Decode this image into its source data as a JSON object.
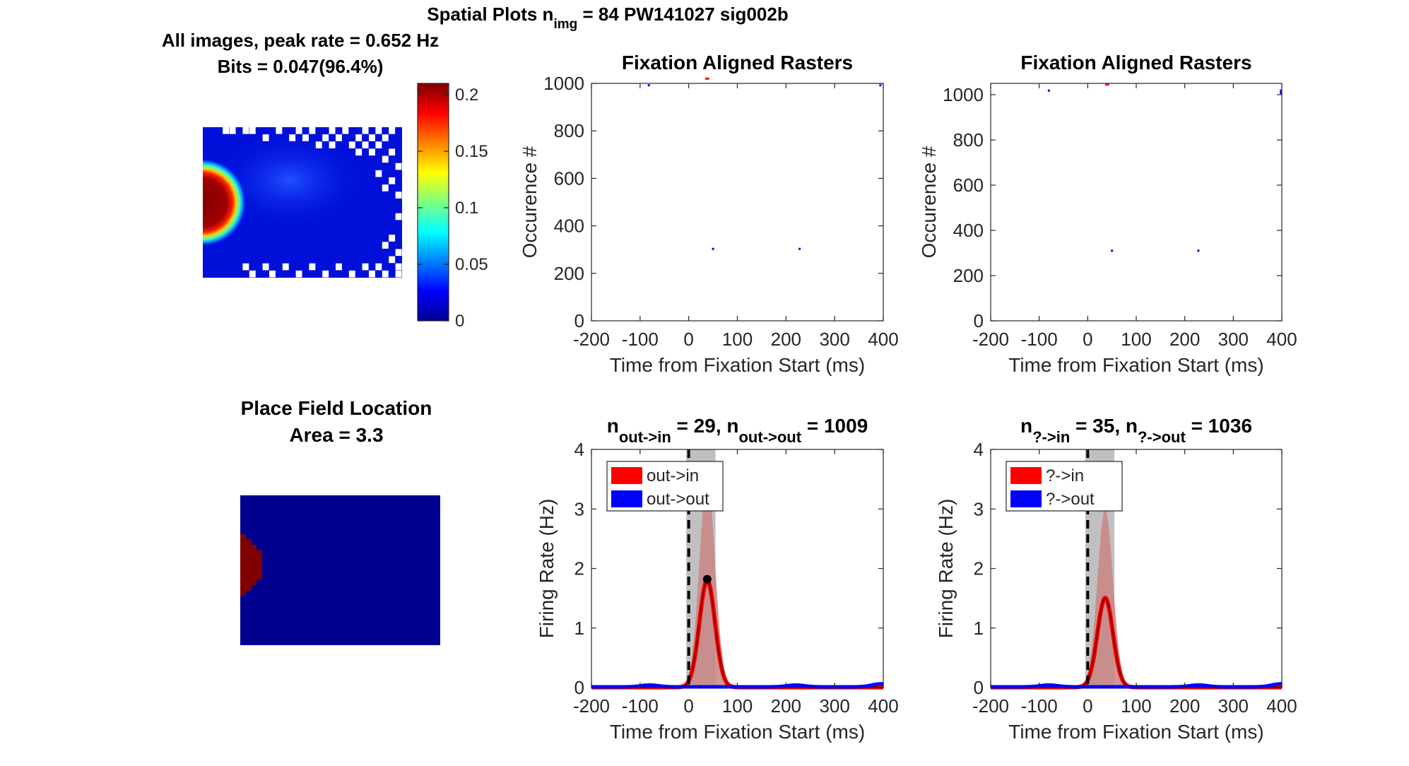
{
  "figure": {
    "title_prefix": "Spatial Plots n",
    "title_sub": "img",
    "title_suffix": " = 84  PW141027 sig002b"
  },
  "colors": {
    "in": "#ff0000",
    "out": "#0000ff",
    "shade_in": "#c98585",
    "window": "#c0c0c0",
    "heatmap_bg": "#00008f",
    "place_field": "#800000"
  },
  "chart_data": [
    {
      "id": "heatmap",
      "type": "heatmap",
      "title_line1": "All images, peak rate = 0.652 Hz",
      "title_line2": "Bits = 0.047(96.4%)",
      "colorbar": {
        "range": [
          0,
          0.21
        ],
        "ticks": [
          0,
          0.05,
          0.1,
          0.15,
          0.2
        ]
      }
    },
    {
      "id": "raster-left",
      "type": "scatter",
      "title": "Fixation Aligned Rasters",
      "xlabel": "Time from Fixation Start (ms)",
      "ylabel": "Occurence #",
      "xlim": [
        -200,
        400
      ],
      "ylim": [
        0,
        1000
      ],
      "xticks": [
        -200,
        -100,
        0,
        100,
        200,
        300,
        400
      ],
      "yticks": [
        0,
        200,
        400,
        600,
        800,
        1000
      ],
      "spikes_out": [
        [
          -82,
          992
        ],
        [
          50,
          303
        ],
        [
          228,
          303
        ],
        [
          394,
          992
        ]
      ],
      "spikes_in": [
        {
          "x0": 34,
          "x1": 42,
          "y": 1020
        }
      ]
    },
    {
      "id": "raster-right",
      "type": "scatter",
      "title": "Fixation Aligned Rasters",
      "xlabel": "Time from Fixation Start (ms)",
      "ylabel": "Occurence #",
      "xlim": [
        -200,
        400
      ],
      "ylim": [
        0,
        1050
      ],
      "xticks": [
        -200,
        -100,
        0,
        100,
        200,
        300,
        400
      ],
      "yticks": [
        0,
        200,
        400,
        600,
        800,
        1000
      ],
      "spikes_out": [
        [
          -80,
          1018
        ],
        [
          50,
          310
        ],
        [
          228,
          310
        ],
        [
          398,
          1018
        ],
        [
          398,
          1008
        ]
      ],
      "spikes_in": [
        {
          "x0": 36,
          "x1": 44,
          "y": 1045
        }
      ]
    },
    {
      "id": "place-field",
      "type": "heatmap",
      "title_line1": "Place Field Location",
      "title_line2": "Area = 3.3"
    },
    {
      "id": "rate-left",
      "type": "line",
      "title_n1": "n",
      "title_sub1": "out->in",
      "title_mid": " = 29, n",
      "title_sub2": "out->out",
      "title_end": " = 1009",
      "xlabel": "Time from Fixation Start (ms)",
      "ylabel": "Firing Rate (Hz)",
      "xlim": [
        -200,
        400
      ],
      "ylim": [
        0,
        4
      ],
      "xticks": [
        -200,
        -100,
        0,
        100,
        200,
        300,
        400
      ],
      "yticks": [
        0,
        1,
        2,
        3,
        4
      ],
      "window": [
        -5,
        55
      ],
      "legend": [
        "out->in",
        "out->out"
      ],
      "in_peak": {
        "x": 38,
        "y": 1.8,
        "sigma": 16,
        "shade_hi": 3.5,
        "shade_lo": 0.0
      },
      "peak_marker": [
        38,
        1.82
      ],
      "out_bumps": [
        [
          -80,
          0.03
        ],
        [
          220,
          0.03
        ],
        [
          395,
          0.05
        ]
      ]
    },
    {
      "id": "rate-right",
      "type": "line",
      "title_n1": "n",
      "title_sub1": "?->in",
      "title_mid": " = 35, n",
      "title_sub2": "?->out",
      "title_end": " = 1036",
      "xlabel": "Time from Fixation Start (ms)",
      "ylabel": "Firing Rate (Hz)",
      "xlim": [
        -200,
        400
      ],
      "ylim": [
        0,
        4
      ],
      "xticks": [
        -200,
        -100,
        0,
        100,
        200,
        300,
        400
      ],
      "yticks": [
        0,
        1,
        2,
        3,
        4
      ],
      "window": [
        -5,
        55
      ],
      "legend": [
        "?->in",
        "?->out"
      ],
      "in_peak": {
        "x": 36,
        "y": 1.5,
        "sigma": 16,
        "shade_hi": 3.0,
        "shade_lo": 0.0
      },
      "out_bumps": [
        [
          -80,
          0.03
        ],
        [
          228,
          0.03
        ],
        [
          398,
          0.05
        ]
      ]
    }
  ]
}
